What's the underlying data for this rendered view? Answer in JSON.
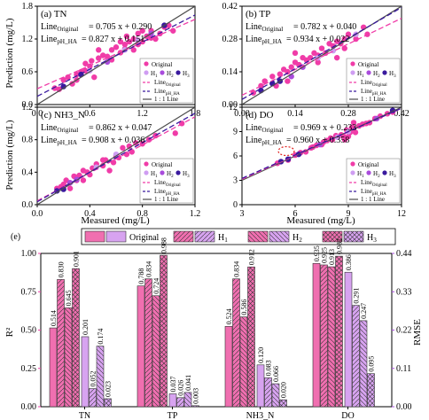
{
  "chart_data": [
    {
      "panel": "(a) TN",
      "type": "scatter",
      "xlim": [
        0,
        1.8
      ],
      "ylim": [
        0,
        1.8
      ],
      "xticks": [
        "0.0",
        "0.6",
        "1.2",
        "1.8"
      ],
      "yticks": [
        "0.0",
        "0.6",
        "1.2",
        "1.8"
      ],
      "eq_original": "0.705 x + 0.290",
      "eq_ph": "0.827 x + 0.151",
      "fit_original": [
        0.705,
        0.29
      ],
      "fit_ph": [
        0.827,
        0.151
      ],
      "points": [
        [
          0.2,
          0.3
        ],
        [
          0.25,
          0.28
        ],
        [
          0.3,
          0.45
        ],
        [
          0.35,
          0.5
        ],
        [
          0.4,
          0.38
        ],
        [
          0.45,
          0.55
        ],
        [
          0.5,
          0.6
        ],
        [
          0.55,
          0.62
        ],
        [
          0.6,
          0.7
        ],
        [
          0.62,
          0.8
        ],
        [
          0.7,
          0.85
        ],
        [
          0.75,
          0.9
        ],
        [
          0.8,
          0.88
        ],
        [
          0.85,
          1.0
        ],
        [
          0.9,
          1.05
        ],
        [
          0.95,
          0.95
        ],
        [
          1.0,
          1.1
        ],
        [
          1.02,
          1.25
        ],
        [
          1.05,
          1.15
        ],
        [
          1.1,
          1.2
        ],
        [
          1.15,
          1.3
        ],
        [
          1.2,
          1.15
        ],
        [
          1.25,
          1.25
        ],
        [
          1.3,
          1.35
        ],
        [
          1.35,
          1.2
        ],
        [
          1.4,
          1.3
        ],
        [
          1.5,
          1.45
        ],
        [
          1.55,
          1.35
        ],
        [
          0.7,
          1.0
        ],
        [
          0.65,
          0.5
        ],
        [
          0.45,
          0.45
        ],
        [
          1.1,
          1.0
        ],
        [
          1.2,
          1.35
        ],
        [
          0.55,
          0.75
        ],
        [
          0.95,
          1.15
        ],
        [
          1.0,
          1.02
        ],
        [
          1.45,
          1.42
        ],
        [
          1.3,
          1.22
        ],
        [
          0.85,
          0.82
        ],
        [
          1.15,
          1.1
        ]
      ],
      "h_points": [
        [
          0.3,
          0.33,
          "h3"
        ],
        [
          0.5,
          0.55,
          "h3"
        ],
        [
          0.8,
          0.78,
          "h2"
        ],
        [
          1.0,
          1.0,
          "h1"
        ],
        [
          1.15,
          1.18,
          "h1"
        ],
        [
          1.3,
          1.3,
          "h2"
        ],
        [
          0.6,
          0.62,
          "h1"
        ],
        [
          1.45,
          1.45,
          "h3"
        ]
      ],
      "legend": [
        "Original",
        "H1",
        "H2",
        "H3",
        "LineOriginal",
        "LinepH_HA",
        "1 : 1 Line"
      ]
    },
    {
      "panel": "(b) TP",
      "type": "scatter",
      "xlim": [
        0,
        0.42
      ],
      "ylim": [
        0,
        0.42
      ],
      "xticks": [
        "0.00",
        "0.14",
        "0.28",
        "0.42"
      ],
      "yticks": [
        "0.00",
        "0.14",
        "0.28",
        "0.42"
      ],
      "eq_original": "0.782 x + 0.040",
      "eq_ph": "0.934 x + 0.022",
      "fit_original": [
        0.782,
        0.04
      ],
      "fit_ph": [
        0.934,
        0.022
      ],
      "points": [
        [
          0.03,
          0.05
        ],
        [
          0.05,
          0.08
        ],
        [
          0.06,
          0.1
        ],
        [
          0.08,
          0.12
        ],
        [
          0.09,
          0.08
        ],
        [
          0.1,
          0.13
        ],
        [
          0.11,
          0.15
        ],
        [
          0.12,
          0.14
        ],
        [
          0.13,
          0.16
        ],
        [
          0.14,
          0.18
        ],
        [
          0.15,
          0.17
        ],
        [
          0.16,
          0.2
        ],
        [
          0.17,
          0.19
        ],
        [
          0.18,
          0.2
        ],
        [
          0.19,
          0.22
        ],
        [
          0.2,
          0.21
        ],
        [
          0.21,
          0.24
        ],
        [
          0.22,
          0.22
        ],
        [
          0.23,
          0.26
        ],
        [
          0.24,
          0.25
        ],
        [
          0.25,
          0.27
        ],
        [
          0.26,
          0.26
        ],
        [
          0.27,
          0.28
        ],
        [
          0.28,
          0.3
        ],
        [
          0.3,
          0.28
        ],
        [
          0.32,
          0.33
        ],
        [
          0.14,
          0.22
        ],
        [
          0.2,
          0.18
        ],
        [
          0.25,
          0.2
        ],
        [
          0.27,
          0.24
        ],
        [
          0.12,
          0.1
        ],
        [
          0.33,
          0.3
        ]
      ],
      "h_points": [
        [
          0.05,
          0.06,
          "h3"
        ],
        [
          0.08,
          0.09,
          "h3"
        ],
        [
          0.1,
          0.1,
          "h3"
        ],
        [
          0.13,
          0.12,
          "h2"
        ],
        [
          0.16,
          0.16,
          "h2"
        ],
        [
          0.2,
          0.2,
          "h1"
        ],
        [
          0.24,
          0.23,
          "h1"
        ],
        [
          0.3,
          0.3,
          "h1"
        ]
      ],
      "legend": [
        "Original",
        "H1",
        "H2",
        "H3",
        "LineOriginal",
        "LinepH_HA",
        "1 : 1 Line"
      ]
    },
    {
      "panel": "(c) NH3_N",
      "type": "scatter",
      "xlim": [
        0,
        1.2
      ],
      "ylim": [
        0,
        1.2
      ],
      "xticks": [
        "0.0",
        "0.4",
        "0.8",
        "1.2"
      ],
      "yticks": [
        "0.0",
        "0.4",
        "0.8",
        "1.2"
      ],
      "eq_original": "0.862 x + 0.047",
      "eq_ph": "0.908 x + 0.036",
      "fit_original": [
        0.862,
        0.047
      ],
      "fit_ph": [
        0.908,
        0.036
      ],
      "points": [
        [
          0.15,
          0.2
        ],
        [
          0.18,
          0.22
        ],
        [
          0.2,
          0.25
        ],
        [
          0.22,
          0.3
        ],
        [
          0.25,
          0.2
        ],
        [
          0.28,
          0.35
        ],
        [
          0.3,
          0.3
        ],
        [
          0.32,
          0.36
        ],
        [
          0.35,
          0.3
        ],
        [
          0.38,
          0.4
        ],
        [
          0.4,
          0.37
        ],
        [
          0.42,
          0.45
        ],
        [
          0.45,
          0.5
        ],
        [
          0.5,
          0.48
        ],
        [
          0.52,
          0.55
        ],
        [
          0.55,
          0.42
        ],
        [
          0.58,
          0.52
        ],
        [
          0.6,
          0.6
        ],
        [
          0.62,
          0.58
        ],
        [
          0.65,
          0.7
        ],
        [
          0.68,
          0.62
        ],
        [
          0.7,
          0.72
        ],
        [
          0.72,
          0.65
        ],
        [
          0.75,
          0.76
        ],
        [
          0.8,
          0.75
        ],
        [
          0.85,
          0.8
        ],
        [
          0.9,
          0.85
        ],
        [
          1.05,
          0.88
        ],
        [
          1.1,
          1.0
        ],
        [
          0.35,
          0.42
        ],
        [
          0.5,
          0.55
        ]
      ],
      "h_points": [
        [
          0.15,
          0.17,
          "h3"
        ],
        [
          0.2,
          0.19,
          "h3"
        ],
        [
          0.25,
          0.27,
          "h2"
        ],
        [
          0.3,
          0.31,
          "h2"
        ],
        [
          0.45,
          0.46,
          "h1"
        ],
        [
          0.6,
          0.62,
          "h1"
        ]
      ],
      "legend": [
        "Original",
        "H1",
        "H2",
        "H3",
        "LineOriginal",
        "LinepH_HA",
        "1 : 1 Line"
      ]
    },
    {
      "panel": "(d) DO",
      "type": "scatter",
      "xlim": [
        3,
        12
      ],
      "ylim": [
        0,
        12
      ],
      "xticks": [
        "3",
        "6",
        "9",
        "12"
      ],
      "yticks": [
        "0",
        "3",
        "6",
        "9",
        "12"
      ],
      "eq_original": "0.969 x + 0.233",
      "eq_ph": "0.960 x + 0.358",
      "fit_original": [
        0.969,
        0.233
      ],
      "fit_ph": [
        0.96,
        0.358
      ],
      "points": [
        [
          5.0,
          5.1
        ],
        [
          5.6,
          5.5
        ],
        [
          6.0,
          6.1
        ],
        [
          6.3,
          6.4
        ],
        [
          6.6,
          6.5
        ],
        [
          6.9,
          7.0
        ],
        [
          7.2,
          7.3
        ],
        [
          7.5,
          7.4
        ],
        [
          7.8,
          7.9
        ],
        [
          8.1,
          8.0
        ],
        [
          8.3,
          8.5
        ],
        [
          8.6,
          8.6
        ],
        [
          8.9,
          9.2
        ],
        [
          9.1,
          8.9
        ],
        [
          9.3,
          9.4
        ],
        [
          9.6,
          9.7
        ],
        [
          9.0,
          8.4
        ],
        [
          8.8,
          8.0
        ],
        [
          9.4,
          8.9
        ],
        [
          9.8,
          9.9
        ],
        [
          10.2,
          10.1
        ],
        [
          10.5,
          10.6
        ],
        [
          10.8,
          10.9
        ],
        [
          11.2,
          11.2
        ],
        [
          11.5,
          11.4
        ],
        [
          8.7,
          8.5
        ],
        [
          9.2,
          9.5
        ],
        [
          9.3,
          10.1
        ],
        [
          7.0,
          7.1
        ],
        [
          7.6,
          7.7
        ],
        [
          8.0,
          8.2
        ],
        [
          10.0,
          10.0
        ]
      ],
      "h_points": [
        [
          5.2,
          5.3,
          "h3"
        ],
        [
          5.6,
          5.6,
          "h3"
        ],
        [
          6.2,
          6.2,
          "h3"
        ],
        [
          7.4,
          7.4,
          "h2"
        ],
        [
          8.4,
          8.3,
          "h1"
        ],
        [
          9.0,
          9.0,
          "h1"
        ],
        [
          10.6,
          10.6,
          "h2"
        ],
        [
          11.5,
          11.6,
          "h3"
        ]
      ],
      "outlier": [
        5.5,
        6.6
      ],
      "legend": [
        "Original",
        "H1",
        "H2",
        "H3",
        "LineOriginal",
        "LinepH_HA",
        "1 : 1 Line"
      ]
    },
    {
      "panel": "(e)",
      "type": "bar",
      "categories": [
        "TN",
        "TP",
        "NH3_N",
        "DO"
      ],
      "ylabel": "R²",
      "y2label": "RMSE",
      "ylim": [
        0,
        1.0
      ],
      "y2lim": [
        0,
        0.44
      ],
      "yticks": [
        "0.00",
        "0.25",
        "0.50",
        "0.75",
        "1.00"
      ],
      "y2ticks": [
        "0.00",
        "0.11",
        "0.22",
        "0.33",
        "0.44"
      ],
      "legend": [
        "Original",
        "H1",
        "H2",
        "H3"
      ],
      "r2": [
        [
          0.514,
          0.83,
          0.645,
          0.901
        ],
        [
          0.788,
          0.834,
          0.724,
          0.988
        ],
        [
          0.524,
          0.834,
          0.586,
          0.912
        ],
        [
          0.935,
          0.925,
          0.913,
          0.982
        ]
      ],
      "rmse": [
        [
          0.201,
          0.052,
          0.174,
          0.023
        ],
        [
          0.037,
          0.026,
          0.041,
          0.003
        ],
        [
          0.12,
          0.083,
          0.066,
          0.02
        ],
        [
          0.386,
          0.291,
          0.247,
          0.095
        ]
      ],
      "r2_labels": [
        [
          "0.514",
          "0.830",
          "0.645",
          "0.901"
        ],
        [
          "0.788",
          "0.834",
          "0.724",
          "0.988"
        ],
        [
          "0.524",
          "0.834",
          "0.586",
          "0.912"
        ],
        [
          "0.935",
          "0.925",
          "0.913",
          "0.982"
        ]
      ],
      "rmse_labels": [
        [
          "0.201",
          "0.052",
          "0.174",
          "0.023"
        ],
        [
          "0.037",
          "0.026",
          "0.041",
          "0.003"
        ],
        [
          "0.120",
          "0.083",
          "0.066",
          "0.020"
        ],
        [
          "0.386",
          "0.291",
          "0.247",
          "0.095"
        ]
      ]
    }
  ],
  "labels": {
    "ylabel_top": "Prediction (mg/L)",
    "xlabel_a": "Measured (mg/L)",
    "xlabel_b": "Measured (mg/L)",
    "line_original": "Line",
    "line_original_sub": "Original",
    "line_ph": "Line",
    "line_ph_sub": "pH_HA",
    "legend_original": "Original",
    "legend_h1": "H",
    "legend_h2": "H",
    "legend_h3": "H",
    "legend_lineorig": "Line",
    "legend_lineph": "Line",
    "legend_1to1": "1 : 1 Line"
  },
  "colors": {
    "original": "#f03ca8",
    "h1": "#cf9df2",
    "h2": "#a94cdc",
    "h3": "#3a1a9e",
    "line_original": "#f03ca8",
    "line_ph": "#3a1a9e",
    "line_1to1": "#4d4d4d",
    "bar_original_fill": "#f06fb0",
    "bar_rmse_fill": "#d7a3f0",
    "axis_right": "#a94cdc"
  }
}
